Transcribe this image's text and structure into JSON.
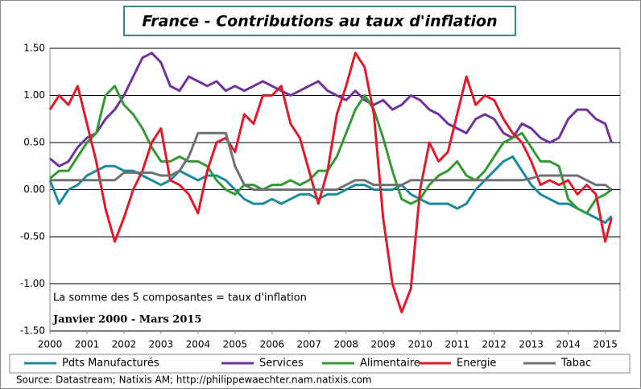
{
  "chart_data": {
    "type": "line",
    "title": "France - Contributions au taux d'inflation",
    "annotations": [
      "La somme des 5 composantes = taux d'inflation",
      "Janvier 2000 - Mars 2015"
    ],
    "source": "Source: Datastream; Natixis AM; http://philippewaechter.nam.natixis.com",
    "x": [
      2000,
      2000.25,
      2000.5,
      2000.75,
      2001,
      2001.25,
      2001.5,
      2001.75,
      2002,
      2002.25,
      2002.5,
      2002.75,
      2003,
      2003.25,
      2003.5,
      2003.75,
      2004,
      2004.25,
      2004.5,
      2004.75,
      2005,
      2005.25,
      2005.5,
      2005.75,
      2006,
      2006.25,
      2006.5,
      2006.75,
      2007,
      2007.25,
      2007.5,
      2007.75,
      2008,
      2008.25,
      2008.5,
      2008.75,
      2009,
      2009.25,
      2009.5,
      2009.75,
      2010,
      2010.25,
      2010.5,
      2010.75,
      2011,
      2011.25,
      2011.5,
      2011.75,
      2012,
      2012.25,
      2012.5,
      2012.75,
      2013,
      2013.25,
      2013.5,
      2013.75,
      2014,
      2014.25,
      2014.5,
      2014.75,
      2015,
      2015.17
    ],
    "xlim": [
      2000,
      2015.4
    ],
    "xticks": [
      2000,
      2001,
      2002,
      2003,
      2004,
      2005,
      2006,
      2007,
      2008,
      2009,
      2010,
      2011,
      2012,
      2013,
      2014,
      2015
    ],
    "ylim": [
      -1.5,
      1.5
    ],
    "yticks": [
      {
        "value": 1.5,
        "label": "1.50"
      },
      {
        "value": 1,
        "label": "1.00"
      },
      {
        "value": 0.5,
        "label": "0.50"
      },
      {
        "value": 0,
        "label": "0.00"
      },
      {
        "value": -0.5,
        "label": "-0.50"
      },
      {
        "value": -1,
        "label": "-1.00"
      },
      {
        "value": -1.5,
        "label": "-1.50"
      }
    ],
    "grid": true,
    "legend": "bottom",
    "series": [
      {
        "name": "Pdts Manufacturés",
        "color": "#1b8a9c",
        "values": [
          0.1,
          -0.15,
          0.0,
          0.05,
          0.15,
          0.2,
          0.25,
          0.25,
          0.2,
          0.2,
          0.15,
          0.1,
          0.05,
          0.1,
          0.2,
          0.15,
          0.1,
          0.15,
          0.15,
          0.1,
          0.0,
          -0.1,
          -0.15,
          -0.15,
          -0.1,
          -0.15,
          -0.1,
          -0.05,
          -0.05,
          -0.1,
          -0.05,
          -0.05,
          0.0,
          0.05,
          0.05,
          0.0,
          0.0,
          0.0,
          0.05,
          -0.05,
          -0.1,
          -0.15,
          -0.15,
          -0.15,
          -0.2,
          -0.15,
          0.0,
          0.1,
          0.2,
          0.3,
          0.35,
          0.2,
          0.05,
          -0.05,
          -0.1,
          -0.15,
          -0.15,
          -0.2,
          -0.25,
          -0.3,
          -0.35,
          -0.28
        ]
      },
      {
        "name": "Services",
        "color": "#7030a0",
        "values": [
          0.33,
          0.25,
          0.3,
          0.45,
          0.55,
          0.6,
          0.75,
          0.85,
          1.0,
          1.2,
          1.4,
          1.45,
          1.35,
          1.1,
          1.05,
          1.2,
          1.15,
          1.1,
          1.15,
          1.05,
          1.1,
          1.05,
          1.1,
          1.15,
          1.1,
          1.05,
          1.0,
          1.05,
          1.1,
          1.15,
          1.05,
          1.0,
          0.95,
          1.05,
          0.95,
          0.9,
          0.95,
          0.85,
          0.9,
          1.0,
          0.95,
          0.85,
          0.8,
          0.7,
          0.65,
          0.6,
          0.75,
          0.8,
          0.75,
          0.6,
          0.55,
          0.7,
          0.65,
          0.55,
          0.5,
          0.55,
          0.75,
          0.85,
          0.85,
          0.75,
          0.7,
          0.5
        ]
      },
      {
        "name": "Alimentaire",
        "color": "#339933",
        "values": [
          0.12,
          0.2,
          0.2,
          0.35,
          0.5,
          0.6,
          1.0,
          1.1,
          0.9,
          0.8,
          0.65,
          0.45,
          0.3,
          0.3,
          0.35,
          0.3,
          0.3,
          0.25,
          0.1,
          0.0,
          -0.05,
          0.05,
          0.05,
          0.0,
          0.05,
          0.05,
          0.1,
          0.05,
          0.1,
          0.2,
          0.2,
          0.35,
          0.6,
          0.85,
          1.0,
          0.85,
          0.55,
          0.2,
          -0.1,
          -0.15,
          -0.1,
          0.05,
          0.15,
          0.2,
          0.3,
          0.15,
          0.1,
          0.2,
          0.35,
          0.5,
          0.55,
          0.6,
          0.45,
          0.3,
          0.3,
          0.25,
          -0.1,
          -0.2,
          -0.25,
          -0.1,
          -0.05,
          0.0
        ]
      },
      {
        "name": "Energie",
        "color": "#e3192b",
        "values": [
          0.85,
          1.0,
          0.9,
          1.1,
          0.7,
          0.3,
          -0.2,
          -0.55,
          -0.3,
          0.0,
          0.2,
          0.5,
          0.65,
          0.1,
          0.05,
          -0.05,
          -0.25,
          0.2,
          0.5,
          0.55,
          0.4,
          0.8,
          0.7,
          1.0,
          1.0,
          1.1,
          0.7,
          0.55,
          0.2,
          -0.15,
          0.2,
          0.8,
          1.1,
          1.45,
          1.3,
          0.8,
          -0.3,
          -1.0,
          -1.3,
          -1.05,
          0.0,
          0.5,
          0.3,
          0.4,
          0.8,
          1.2,
          0.9,
          1.0,
          0.95,
          0.75,
          0.6,
          0.5,
          0.3,
          0.05,
          0.1,
          0.05,
          0.1,
          -0.05,
          0.05,
          -0.05,
          -0.55,
          -0.3
        ]
      },
      {
        "name": "Tabac",
        "color": "#707070",
        "values": [
          0.1,
          0.1,
          0.1,
          0.1,
          0.1,
          0.1,
          0.1,
          0.1,
          0.18,
          0.18,
          0.18,
          0.18,
          0.15,
          0.15,
          0.2,
          0.35,
          0.6,
          0.6,
          0.6,
          0.6,
          0.25,
          0.05,
          0.0,
          0.0,
          0.0,
          0.0,
          0.0,
          0.0,
          0.0,
          0.0,
          0.0,
          0.0,
          0.05,
          0.1,
          0.1,
          0.05,
          0.05,
          0.05,
          0.05,
          0.1,
          0.1,
          0.1,
          0.1,
          0.1,
          0.1,
          0.1,
          0.1,
          0.1,
          0.1,
          0.1,
          0.1,
          0.1,
          0.12,
          0.15,
          0.15,
          0.15,
          0.15,
          0.15,
          0.1,
          0.05,
          0.05,
          0.0
        ]
      }
    ]
  }
}
